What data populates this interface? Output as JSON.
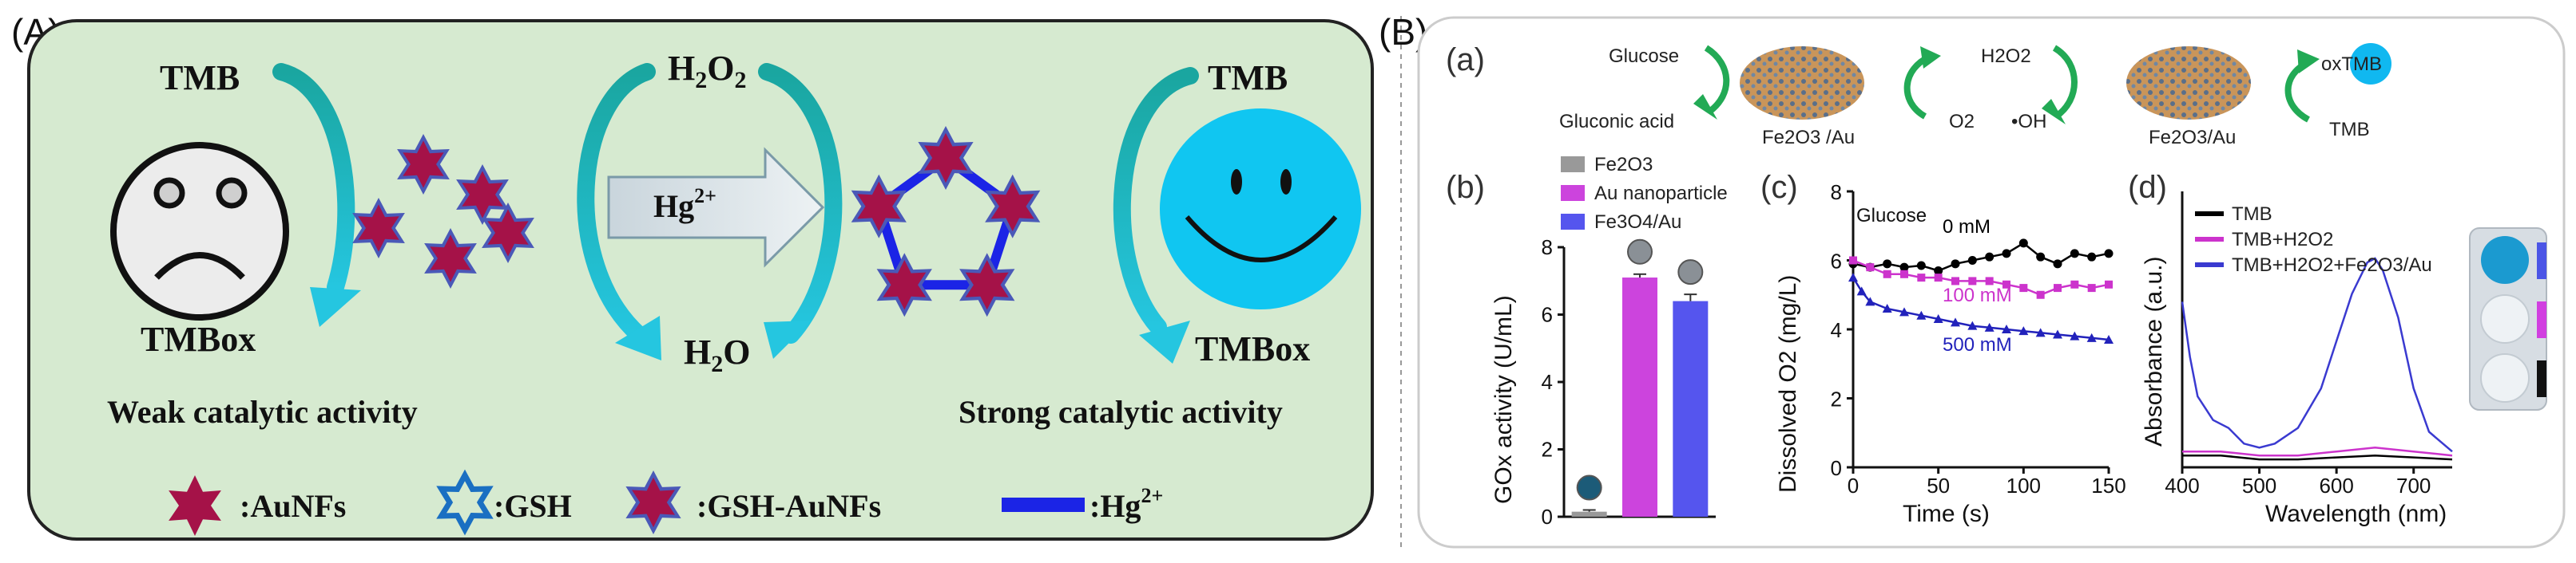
{
  "panelA": {
    "label": "(A)",
    "left": {
      "top_label": "TMB",
      "bottom_label": "TMBox",
      "caption": "Weak catalytic activity"
    },
    "middle": {
      "top_label_main": "H",
      "top_label_sub": "2",
      "top_label_main2": "O",
      "top_label_sub2": "2",
      "arrow_label": "Hg",
      "arrow_sup": "2+",
      "bottom_label_main": "H",
      "bottom_label_sub": "2",
      "bottom_label_main2": "O"
    },
    "right": {
      "top_label": "TMB",
      "bottom_label": "TMBox",
      "caption": "Strong catalytic activity"
    },
    "legend": [
      {
        "label": ":AuNFs"
      },
      {
        "label": ":GSH"
      },
      {
        "label": ":GSH-AuNFs"
      },
      {
        "label": ":Hg",
        "sup": "2+"
      }
    ],
    "colors": {
      "box_bg": "#d6ead0",
      "star_fill": "#a51248",
      "star_edge": "#4a59b8",
      "hg_line": "#1b24e6",
      "smiley": "#10c6f1"
    }
  },
  "panelB": {
    "label": "(B)",
    "a": {
      "label": "(a)",
      "glucose": "Glucose",
      "gluconic": "Gluconic acid",
      "catalyst1": "Fe2O3 /Au",
      "h2o2": "H2O2",
      "o2": "O2",
      "oh": "•OH",
      "catalyst2": "Fe2O3/Au",
      "oxtmb": "oxTMB",
      "tmb": "TMB"
    },
    "b": {
      "label": "(b)",
      "legend": [
        "Fe2O3",
        "Au nanoparticle",
        "Fe3O4/Au"
      ],
      "ylabel": "GOx activity (U/mL)"
    },
    "c": {
      "label": "(c)",
      "ylabel": "Dissolved O2 (mg/L)",
      "xlabel": "Time (s)",
      "annotation": "Glucose",
      "series_labels": [
        "0 mM",
        "100 mM",
        "500 mM"
      ]
    },
    "d": {
      "label": "(d)",
      "ylabel": "Absorbance (a.u.)",
      "xlabel": "Wavelength (nm)",
      "legend": [
        "TMB",
        "TMB+H2O2",
        "TMB+H2O2+Fe2O3/Au"
      ]
    }
  },
  "chart_data": [
    {
      "type": "bar",
      "panel": "b",
      "categories": [
        "Fe2O3",
        "Au nanoparticle",
        "Fe3O4/Au"
      ],
      "values": [
        0.15,
        7.1,
        6.4
      ],
      "errors": [
        0.05,
        0.1,
        0.2
      ],
      "colors": [
        "#999999",
        "#cc44dd",
        "#5555ee"
      ],
      "title": "",
      "xlabel": "",
      "ylabel": "GOx activity (U/mL)",
      "ylim": [
        0,
        8
      ],
      "yticks": [
        0,
        2,
        4,
        6,
        8
      ]
    },
    {
      "type": "line",
      "panel": "c",
      "title": "",
      "xlabel": "Time (s)",
      "ylabel": "Dissolved O2 (mg/L)",
      "xlim": [
        0,
        150
      ],
      "ylim": [
        0,
        8
      ],
      "xticks": [
        0,
        50,
        100,
        150
      ],
      "yticks": [
        0,
        2,
        4,
        6,
        8
      ],
      "series": [
        {
          "name": "0 mM",
          "color": "#000000",
          "marker": "circle",
          "x": [
            0,
            10,
            20,
            30,
            40,
            50,
            60,
            70,
            80,
            90,
            100,
            110,
            120,
            130,
            140,
            150
          ],
          "y": [
            5.9,
            5.8,
            5.9,
            5.8,
            5.85,
            5.7,
            5.9,
            6.0,
            6.1,
            6.2,
            6.5,
            6.1,
            5.9,
            6.2,
            6.1,
            6.2
          ]
        },
        {
          "name": "100 mM",
          "color": "#cc33cc",
          "marker": "square",
          "x": [
            0,
            10,
            20,
            30,
            40,
            50,
            60,
            70,
            80,
            90,
            100,
            110,
            120,
            130,
            140,
            150
          ],
          "y": [
            6.0,
            5.8,
            5.6,
            5.6,
            5.5,
            5.5,
            5.4,
            5.4,
            5.4,
            5.3,
            5.2,
            5.0,
            5.2,
            5.3,
            5.2,
            5.3
          ]
        },
        {
          "name": "500 mM",
          "color": "#2222bb",
          "marker": "triangle",
          "x": [
            0,
            5,
            10,
            20,
            30,
            40,
            50,
            60,
            70,
            80,
            90,
            100,
            110,
            120,
            130,
            140,
            150
          ],
          "y": [
            5.5,
            5.1,
            4.8,
            4.6,
            4.5,
            4.4,
            4.3,
            4.2,
            4.1,
            4.05,
            4.0,
            3.95,
            3.9,
            3.85,
            3.8,
            3.75,
            3.7
          ]
        }
      ]
    },
    {
      "type": "line",
      "panel": "d",
      "title": "",
      "xlabel": "Wavelength (nm)",
      "ylabel": "Absorbance (a.u.)",
      "xlim": [
        400,
        750
      ],
      "xticks": [
        400,
        500,
        600,
        700
      ],
      "series": [
        {
          "name": "TMB",
          "color": "#000000",
          "x": [
            400,
            450,
            500,
            550,
            600,
            650,
            700,
            750
          ],
          "y": [
            0.03,
            0.03,
            0.02,
            0.02,
            0.025,
            0.03,
            0.025,
            0.02
          ]
        },
        {
          "name": "TMB+H2O2",
          "color": "#cc33cc",
          "x": [
            400,
            450,
            500,
            550,
            600,
            650,
            700,
            750
          ],
          "y": [
            0.04,
            0.04,
            0.03,
            0.03,
            0.04,
            0.05,
            0.04,
            0.03
          ]
        },
        {
          "name": "TMB+H2O2+Fe2O3/Au",
          "color": "#3a3ad0",
          "x": [
            400,
            410,
            420,
            440,
            460,
            480,
            500,
            520,
            550,
            580,
            600,
            620,
            640,
            650,
            660,
            680,
            700,
            720,
            750
          ],
          "y": [
            0.42,
            0.28,
            0.18,
            0.12,
            0.1,
            0.06,
            0.05,
            0.06,
            0.1,
            0.2,
            0.32,
            0.44,
            0.52,
            0.53,
            0.5,
            0.38,
            0.2,
            0.09,
            0.04
          ]
        }
      ]
    }
  ]
}
